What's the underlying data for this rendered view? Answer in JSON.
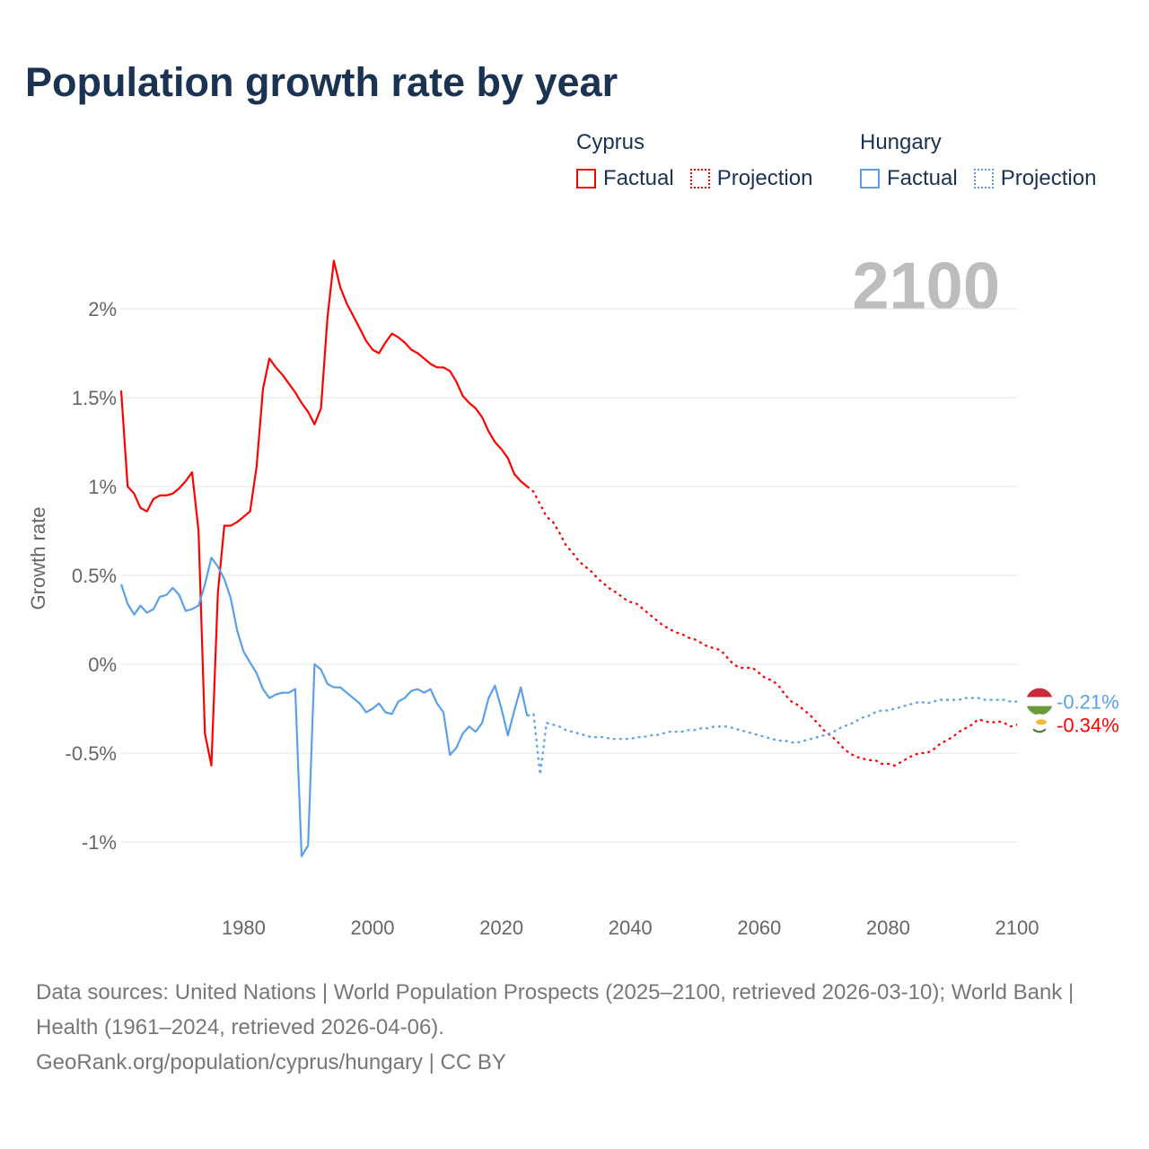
{
  "colors": {
    "cyprus": "#ff0000",
    "hungary": "#5aa0e8",
    "title": "#1a3352",
    "grid": "#e6e6e6",
    "axis_text": "#666666"
  },
  "legend": {
    "groups": [
      {
        "name": "Cyprus",
        "factual": "Factual",
        "projection": "Projection"
      },
      {
        "name": "Hungary",
        "factual": "Factual",
        "projection": "Projection"
      }
    ]
  },
  "current_year_label": "2100",
  "end_labels": {
    "hungary": "-0.21%",
    "cyprus": "-0.34%"
  },
  "footer": {
    "sources": "Data sources: United Nations | World Population Prospects (2025–2100, retrieved 2026-03-10); World Bank | Health (1961–2024, retrieved 2026-04-06).",
    "link": "GeoRank.org/population/cyprus/hungary | CC BY"
  },
  "chart_data": {
    "type": "line",
    "title": "Population growth rate by year",
    "xlabel": "",
    "ylabel": "Growth rate",
    "xlim": [
      1961,
      2100
    ],
    "ylim": [
      -1.25,
      2.4
    ],
    "x_ticks": [
      1980,
      2000,
      2020,
      2040,
      2060,
      2080,
      2100
    ],
    "y_ticks": [
      -1,
      -0.5,
      0,
      0.5,
      1,
      1.5,
      2
    ],
    "y_tick_labels": [
      "-1%",
      "-0.5%",
      "0%",
      "0.5%",
      "1%",
      "1.5%",
      "2%"
    ],
    "grid": true,
    "legend_position": "top-right",
    "series": [
      {
        "name": "Cyprus Factual",
        "country": "cyprus",
        "style": "solid",
        "start": 1961,
        "values": [
          1.54,
          1.0,
          0.96,
          0.88,
          0.86,
          0.93,
          0.95,
          0.95,
          0.96,
          0.99,
          1.03,
          1.08,
          0.75,
          -0.39,
          -0.57,
          0.4,
          0.78,
          0.78,
          0.8,
          0.83,
          0.86,
          1.11,
          1.55,
          1.72,
          1.67,
          1.63,
          1.58,
          1.53,
          1.47,
          1.42,
          1.35,
          1.44,
          1.95,
          2.27,
          2.12,
          2.03,
          1.96,
          1.89,
          1.82,
          1.77,
          1.75,
          1.81,
          1.86,
          1.84,
          1.81,
          1.77,
          1.75,
          1.72,
          1.69,
          1.67,
          1.67,
          1.65,
          1.59,
          1.51,
          1.47,
          1.44,
          1.39,
          1.31,
          1.25,
          1.21,
          1.16,
          1.07,
          1.03,
          1.0
        ]
      },
      {
        "name": "Cyprus Projection",
        "country": "cyprus",
        "style": "dotted",
        "start": 2024,
        "values": [
          1.0,
          0.97,
          0.9,
          0.83,
          0.8,
          0.74,
          0.67,
          0.63,
          0.58,
          0.55,
          0.52,
          0.48,
          0.45,
          0.42,
          0.4,
          0.37,
          0.35,
          0.34,
          0.31,
          0.28,
          0.25,
          0.22,
          0.2,
          0.18,
          0.17,
          0.15,
          0.14,
          0.12,
          0.1,
          0.09,
          0.08,
          0.04,
          0.0,
          -0.02,
          -0.02,
          -0.02,
          -0.05,
          -0.08,
          -0.09,
          -0.12,
          -0.17,
          -0.21,
          -0.23,
          -0.26,
          -0.29,
          -0.33,
          -0.37,
          -0.4,
          -0.43,
          -0.47,
          -0.5,
          -0.52,
          -0.53,
          -0.54,
          -0.54,
          -0.56,
          -0.56,
          -0.57,
          -0.55,
          -0.53,
          -0.51,
          -0.5,
          -0.5,
          -0.48,
          -0.45,
          -0.43,
          -0.41,
          -0.38,
          -0.36,
          -0.34,
          -0.31,
          -0.32,
          -0.33,
          -0.32,
          -0.33,
          -0.35,
          -0.34
        ]
      },
      {
        "name": "Hungary Factual",
        "country": "hungary",
        "style": "solid",
        "start": 1961,
        "values": [
          0.45,
          0.34,
          0.28,
          0.33,
          0.29,
          0.31,
          0.38,
          0.39,
          0.43,
          0.39,
          0.3,
          0.31,
          0.33,
          0.45,
          0.6,
          0.55,
          0.48,
          0.37,
          0.19,
          0.07,
          0.01,
          -0.05,
          -0.14,
          -0.19,
          -0.17,
          -0.16,
          -0.16,
          -0.14,
          -1.08,
          -1.02,
          0.0,
          -0.03,
          -0.11,
          -0.13,
          -0.13,
          -0.16,
          -0.19,
          -0.22,
          -0.27,
          -0.25,
          -0.22,
          -0.27,
          -0.28,
          -0.21,
          -0.19,
          -0.15,
          -0.14,
          -0.16,
          -0.14,
          -0.22,
          -0.27,
          -0.51,
          -0.47,
          -0.39,
          -0.35,
          -0.38,
          -0.33,
          -0.19,
          -0.12,
          -0.25,
          -0.4,
          -0.26,
          -0.13,
          -0.29
        ]
      },
      {
        "name": "Hungary Projection",
        "country": "hungary",
        "style": "dotted",
        "start": 2024,
        "values": [
          -0.29,
          -0.28,
          -0.62,
          -0.33,
          -0.34,
          -0.35,
          -0.37,
          -0.38,
          -0.39,
          -0.4,
          -0.41,
          -0.41,
          -0.41,
          -0.42,
          -0.42,
          -0.42,
          -0.42,
          -0.41,
          -0.41,
          -0.4,
          -0.4,
          -0.39,
          -0.38,
          -0.38,
          -0.38,
          -0.37,
          -0.37,
          -0.36,
          -0.36,
          -0.35,
          -0.35,
          -0.35,
          -0.36,
          -0.37,
          -0.38,
          -0.39,
          -0.4,
          -0.41,
          -0.42,
          -0.43,
          -0.43,
          -0.44,
          -0.44,
          -0.43,
          -0.42,
          -0.41,
          -0.4,
          -0.39,
          -0.37,
          -0.35,
          -0.34,
          -0.32,
          -0.3,
          -0.29,
          -0.27,
          -0.26,
          -0.26,
          -0.25,
          -0.24,
          -0.23,
          -0.22,
          -0.21,
          -0.22,
          -0.21,
          -0.2,
          -0.2,
          -0.2,
          -0.2,
          -0.19,
          -0.19,
          -0.19,
          -0.2,
          -0.2,
          -0.2,
          -0.2,
          -0.21,
          -0.21
        ]
      }
    ]
  }
}
